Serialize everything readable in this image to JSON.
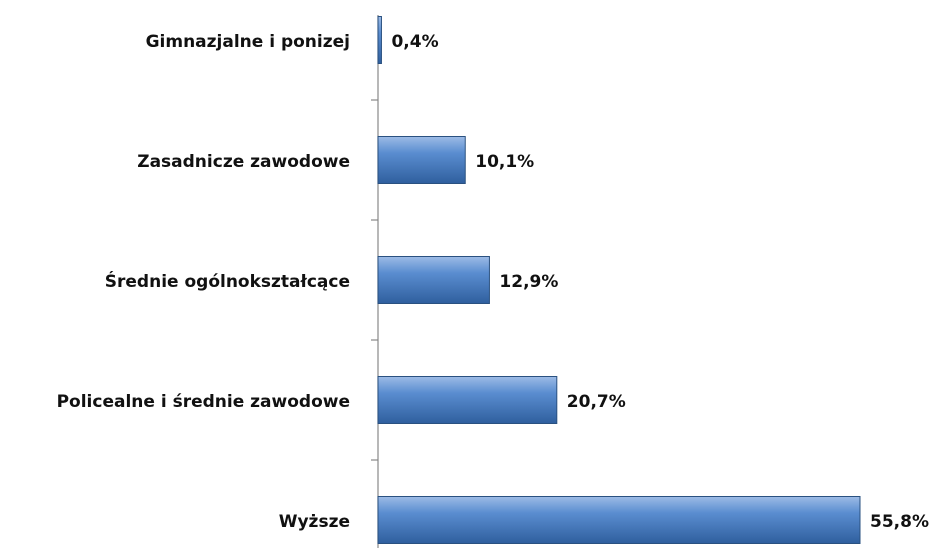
{
  "chart_data": {
    "type": "bar",
    "orientation": "horizontal",
    "categories": [
      "Gimnazjalne i ponizej",
      "Zasadnicze zawodowe",
      "Średnie ogólnokształcące",
      "Policealne i średnie zawodowe",
      "Wyższe"
    ],
    "values": [
      0.4,
      10.1,
      12.9,
      20.7,
      55.8
    ],
    "value_labels": [
      "0,4%",
      "10,1%",
      "12,9%",
      "20,7%",
      "55,8%"
    ],
    "color": "#4a7ebb"
  }
}
